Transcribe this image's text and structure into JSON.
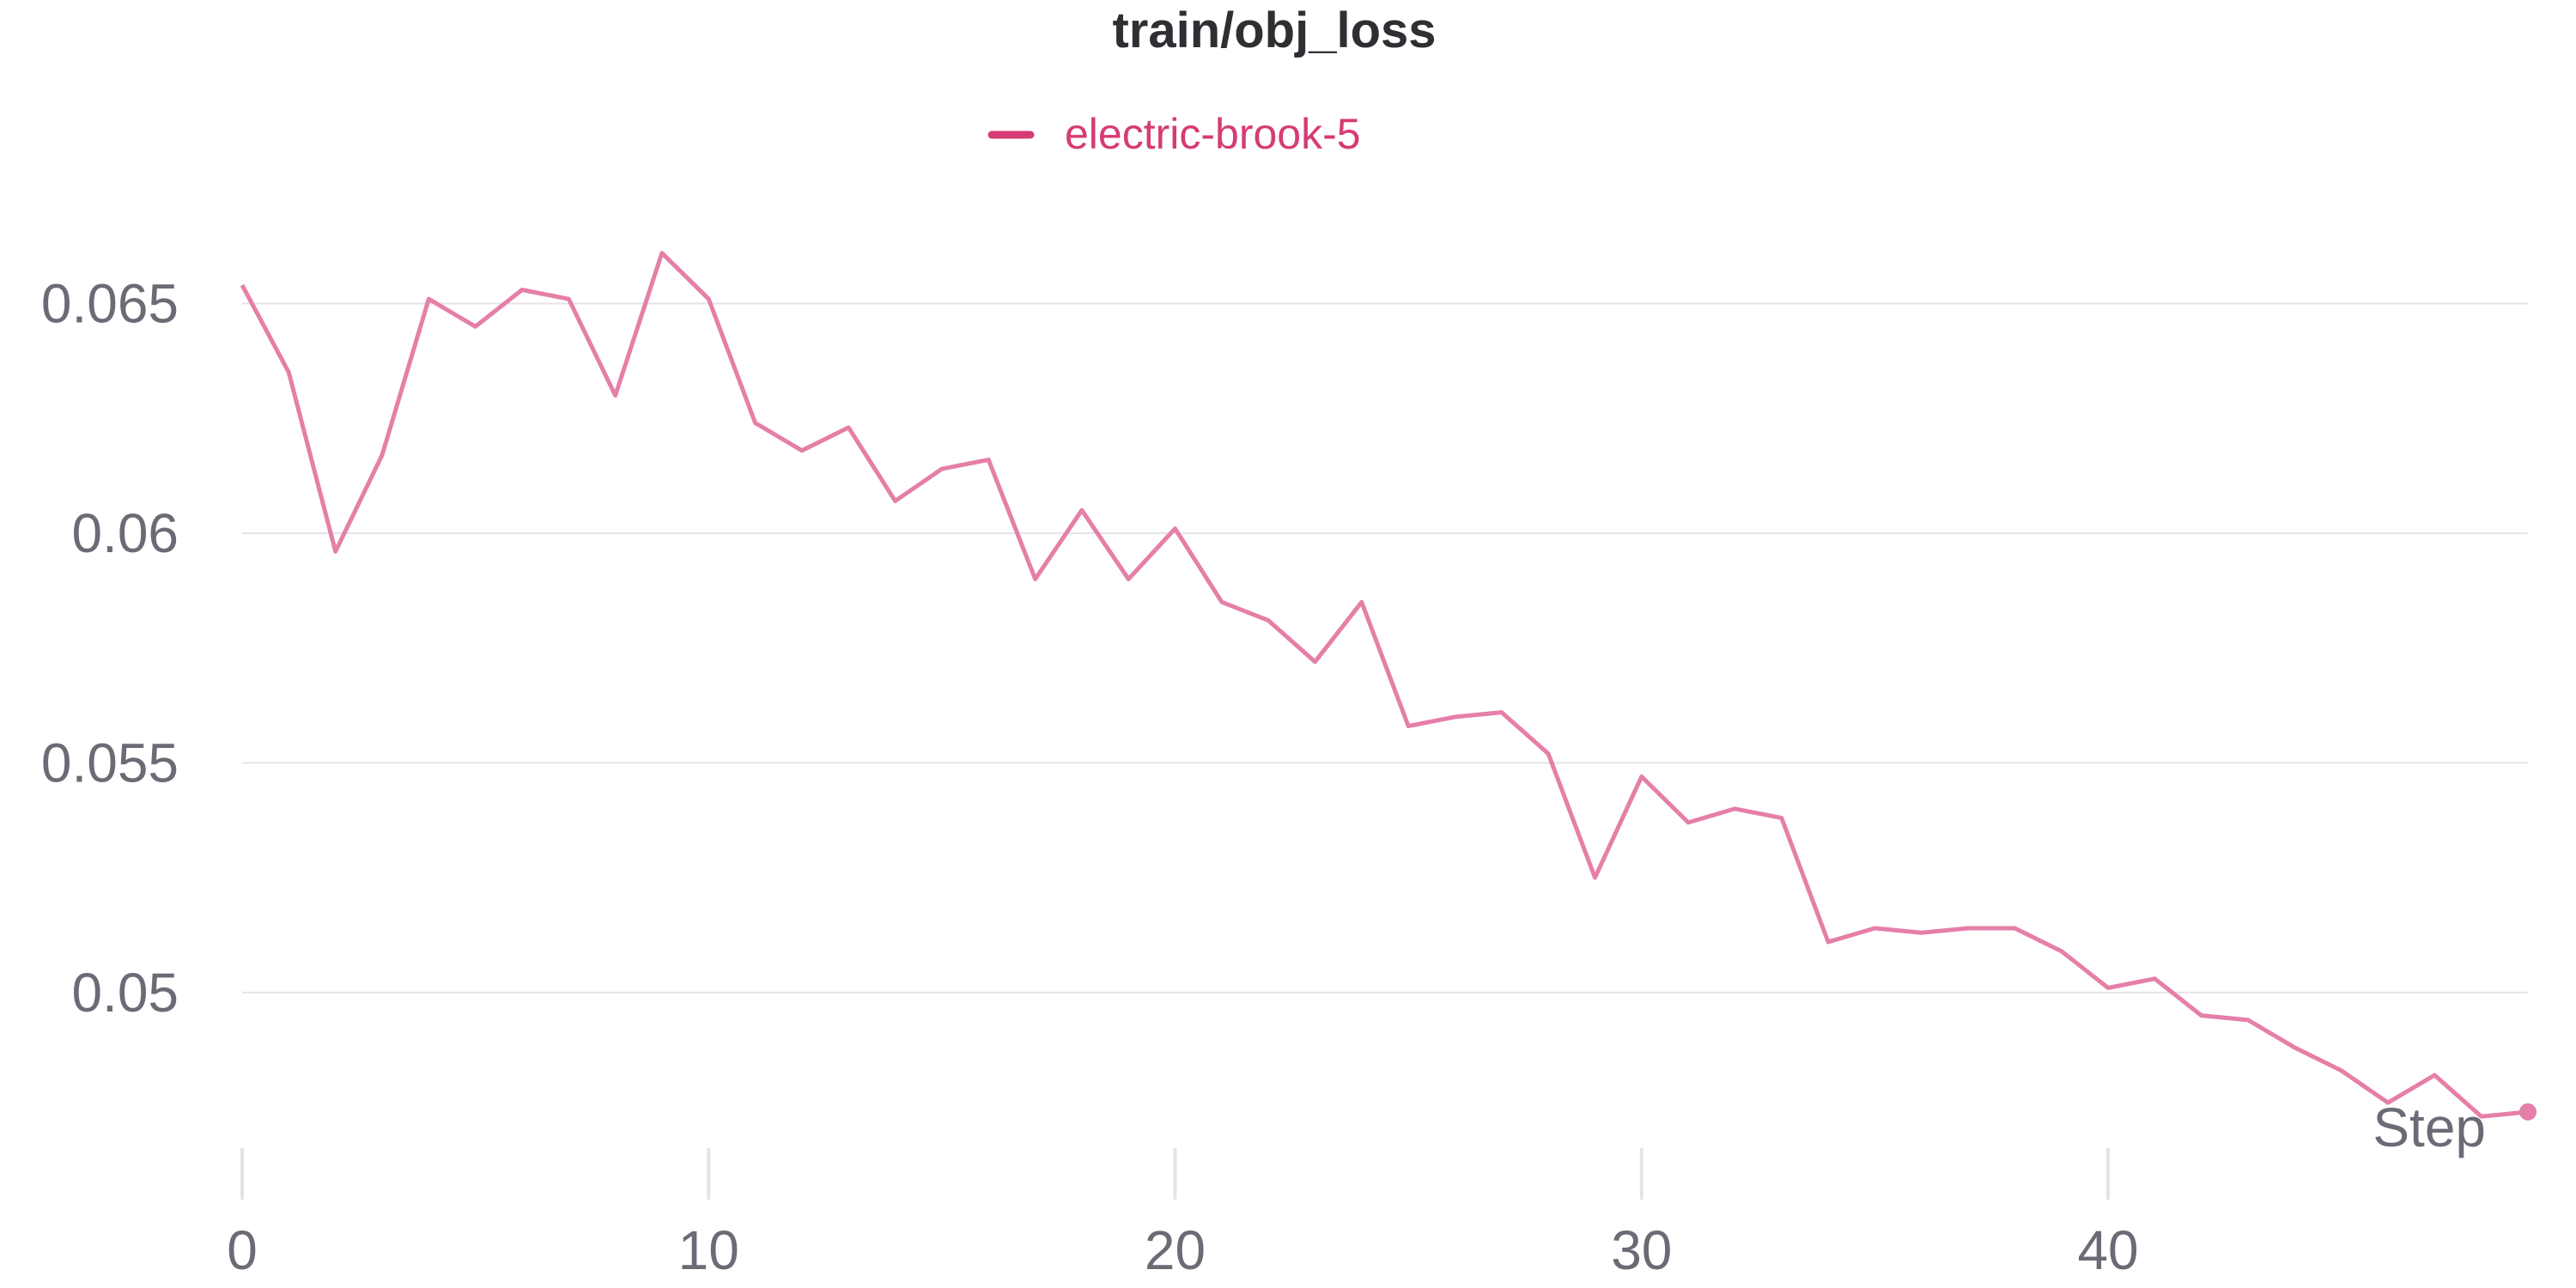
{
  "chart_data": {
    "type": "line",
    "title": "train/obj_loss",
    "xlabel": "Step",
    "ylabel": "",
    "legend_position": "top-center",
    "grid": true,
    "xlim": [
      0,
      49
    ],
    "ylim": [
      0.0468,
      0.0683
    ],
    "x_ticks": [
      0,
      10,
      20,
      30,
      40
    ],
    "y_ticks": [
      0.05,
      0.055,
      0.06,
      0.065
    ],
    "x_tick_labels": [
      "0",
      "10",
      "20",
      "30",
      "40"
    ],
    "y_tick_labels": [
      "0.05",
      "0.055",
      "0.06",
      "0.065"
    ],
    "series": [
      {
        "name": "electric-brook-5",
        "color": "#e57fa8",
        "legend_color": "#d63b75",
        "x": [
          0,
          1,
          2,
          3,
          4,
          5,
          6,
          7,
          8,
          9,
          10,
          11,
          12,
          13,
          14,
          15,
          16,
          17,
          18,
          19,
          20,
          21,
          22,
          23,
          24,
          25,
          26,
          27,
          28,
          29,
          30,
          31,
          32,
          33,
          34,
          35,
          36,
          37,
          38,
          39,
          40,
          41,
          42,
          43,
          44,
          45,
          46,
          47,
          48,
          49
        ],
        "values": [
          0.0654,
          0.0635,
          0.0596,
          0.0617,
          0.0651,
          0.0645,
          0.0653,
          0.0651,
          0.063,
          0.0661,
          0.0651,
          0.0624,
          0.0618,
          0.0623,
          0.0607,
          0.0614,
          0.0616,
          0.059,
          0.0605,
          0.059,
          0.0601,
          0.0585,
          0.0581,
          0.0572,
          0.0585,
          0.0558,
          0.056,
          0.0561,
          0.0552,
          0.0525,
          0.0547,
          0.0537,
          0.054,
          0.0538,
          0.0511,
          0.0514,
          0.0513,
          0.0514,
          0.0514,
          0.0509,
          0.0501,
          0.0503,
          0.0495,
          0.0494,
          0.0488,
          0.0483,
          0.0476,
          0.0482,
          0.0473,
          0.0474
        ]
      }
    ]
  }
}
